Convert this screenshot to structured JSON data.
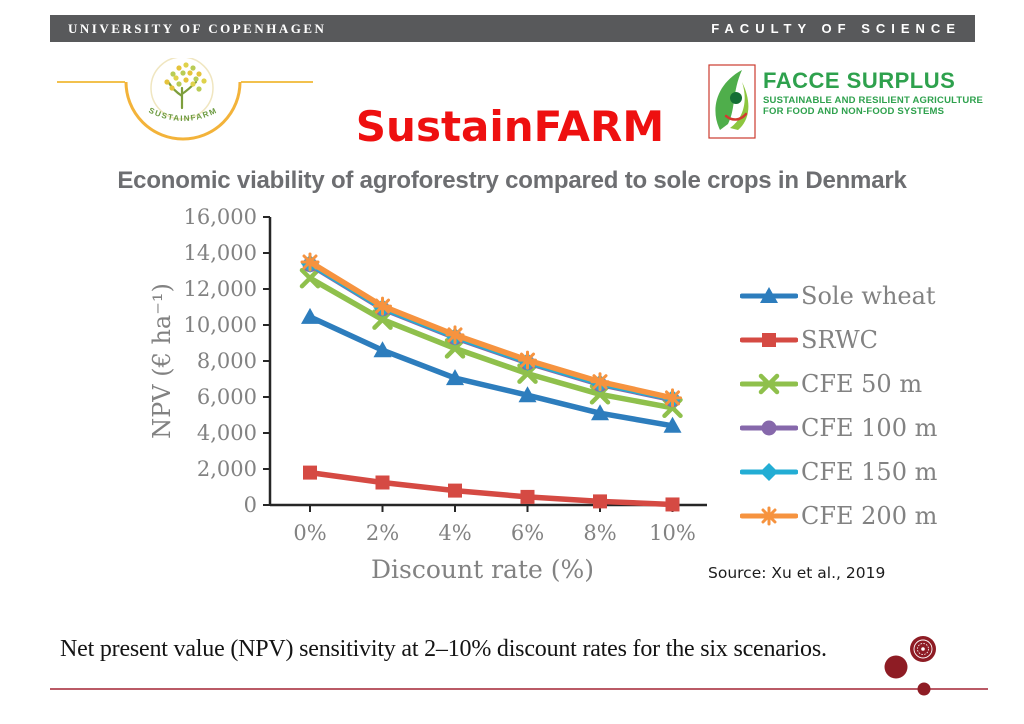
{
  "topbar": {
    "left_text": "UNIVERSITY OF COPENHAGEN",
    "right_text": "FACULTY OF SCIENCE"
  },
  "header": {
    "title": "SustainFARM",
    "sustainfarm_logo_text": "SUSTAINFARM",
    "facce_logo": {
      "name": "FACCE SURPLUS",
      "tagline_line1": "SUSTAINABLE AND RESILIENT AGRICULTURE",
      "tagline_line2": "FOR FOOD AND NON-FOOD SYSTEMS"
    }
  },
  "subtitle": "Economic viability of agroforestry compared to sole crops in Denmark",
  "source_note": "Source: Xu et al., 2019",
  "caption": "Net present value (NPV) sensitivity at 2–10% discount rates for the six scenarios.",
  "colors": {
    "title_red": "#ee1010",
    "topbar_gray": "#58595b",
    "ucph_red": "#8e1c24",
    "facce_green": "#2ea14d",
    "chart_text_gray": "#828282"
  },
  "chart_data": {
    "type": "line",
    "title": "",
    "xlabel": "Discount rate (%)",
    "ylabel": "NPV (€ ha⁻¹)",
    "x": [
      0,
      2,
      4,
      6,
      8,
      10
    ],
    "x_tick_labels": [
      "0%",
      "2%",
      "4%",
      "6%",
      "8%",
      "10%"
    ],
    "ylim": [
      0,
      16000
    ],
    "ytick_step": 2000,
    "grid": false,
    "legend_position": "right-outside",
    "series": [
      {
        "name": "Sole wheat",
        "marker": "triangle",
        "color": "#2d7dbd",
        "values": [
          10450,
          8600,
          7050,
          6100,
          5100,
          4400
        ]
      },
      {
        "name": "SRWC",
        "marker": "square",
        "color": "#d54a43",
        "values": [
          1800,
          1250,
          800,
          450,
          200,
          30
        ]
      },
      {
        "name": "CFE 50 m",
        "marker": "x",
        "color": "#8fc04c",
        "values": [
          12600,
          10300,
          8700,
          7300,
          6150,
          5400
        ]
      },
      {
        "name": "CFE 100 m",
        "marker": "circle",
        "color": "#8668ab",
        "values": [
          13350,
          10900,
          9300,
          7900,
          6700,
          5850
        ]
      },
      {
        "name": "CFE 150 m",
        "marker": "diamond",
        "color": "#23add4",
        "values": [
          13400,
          10950,
          9350,
          7950,
          6750,
          5900
        ]
      },
      {
        "name": "CFE 200 m",
        "marker": "star",
        "color": "#f6933f",
        "values": [
          13500,
          11050,
          9450,
          8050,
          6850,
          5950
        ]
      }
    ]
  }
}
